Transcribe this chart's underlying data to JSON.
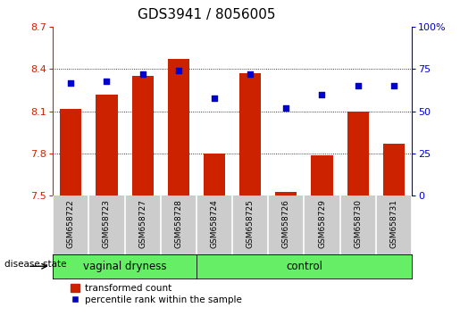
{
  "title": "GDS3941 / 8056005",
  "samples": [
    "GSM658722",
    "GSM658723",
    "GSM658727",
    "GSM658728",
    "GSM658724",
    "GSM658725",
    "GSM658726",
    "GSM658729",
    "GSM658730",
    "GSM658731"
  ],
  "transformed_count": [
    8.12,
    8.22,
    8.35,
    8.47,
    7.8,
    8.37,
    7.53,
    7.79,
    8.1,
    7.87
  ],
  "percentile_rank": [
    67,
    68,
    72,
    74,
    58,
    72,
    52,
    60,
    65,
    65
  ],
  "ylim_left": [
    7.5,
    8.7
  ],
  "ylim_right": [
    0,
    100
  ],
  "yticks_left": [
    7.5,
    7.8,
    8.1,
    8.4,
    8.7
  ],
  "yticks_right": [
    0,
    25,
    50,
    75,
    100
  ],
  "bar_color": "#cc2200",
  "scatter_color": "#0000cc",
  "bar_bottom": 7.5,
  "group1_label": "vaginal dryness",
  "group2_label": "control",
  "group1_count": 4,
  "group2_count": 6,
  "disease_state_label": "disease state",
  "legend_bar_label": "transformed count",
  "legend_scatter_label": "percentile rank within the sample",
  "group_bg_color": "#66ee66",
  "xtick_bg_color": "#cccccc",
  "plot_bg_color": "#ffffff",
  "grid_color": "#000000",
  "title_fontsize": 11,
  "tick_label_fontsize": 8,
  "bar_width": 0.6
}
